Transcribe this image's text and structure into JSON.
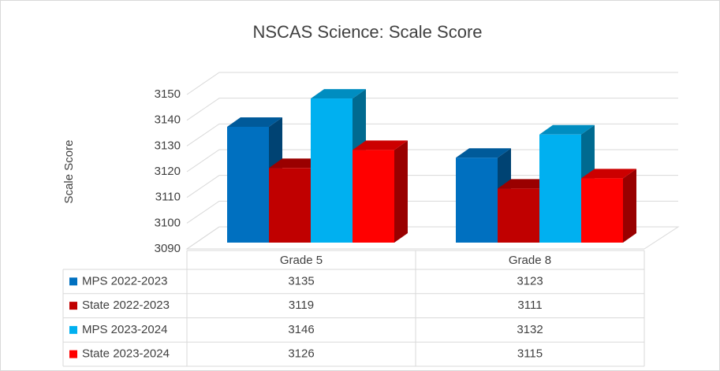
{
  "chart_data": {
    "type": "bar3d",
    "title": "NSCAS Science: Scale Score",
    "y_label": "Scale Score",
    "categories": [
      "Grade 5",
      "Grade 8"
    ],
    "series": [
      {
        "name": "MPS 2022-2023",
        "color": "#0070c0",
        "values": [
          3135,
          3123
        ]
      },
      {
        "name": "State 2022-2023",
        "color": "#c00000",
        "values": [
          3119,
          3111
        ]
      },
      {
        "name": "MPS 2023-2024",
        "color": "#00b0f0",
        "values": [
          3146,
          3132
        ]
      },
      {
        "name": "State 2023-2024",
        "color": "#ff0000",
        "values": [
          3126,
          3115
        ]
      }
    ],
    "ylim": [
      3090,
      3150
    ],
    "yticks": [
      3090,
      3100,
      3110,
      3120,
      3130,
      3140,
      3150
    ],
    "grid": true,
    "data_table": true
  }
}
